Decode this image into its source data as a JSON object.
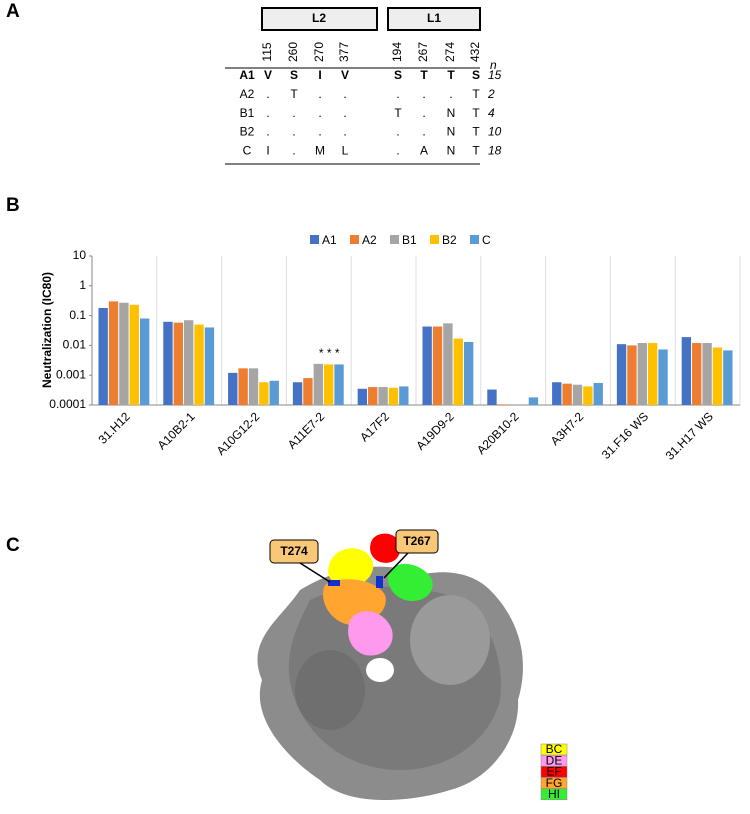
{
  "panel_a": {
    "label": "A",
    "groups": [
      "L2",
      "L1"
    ],
    "positions": [
      115,
      260,
      270,
      377,
      194,
      267,
      274,
      432
    ],
    "n_header": "n",
    "rows": [
      {
        "name": "A1",
        "residues": [
          "V",
          "S",
          "I",
          "V",
          "S",
          "T",
          "T",
          "S"
        ],
        "n": 15
      },
      {
        "name": "A2",
        "residues": [
          ".",
          "T",
          ".",
          ".",
          ".",
          ".",
          ".",
          "T"
        ],
        "n": 2
      },
      {
        "name": "B1",
        "residues": [
          ".",
          ".",
          ".",
          ".",
          "T",
          ".",
          "N",
          "T"
        ],
        "n": 4
      },
      {
        "name": "B2",
        "residues": [
          ".",
          ".",
          ".",
          ".",
          ".",
          ".",
          "N",
          "T"
        ],
        "n": 10
      },
      {
        "name": "C",
        "residues": [
          "I",
          ".",
          "M",
          "L",
          ".",
          "A",
          "N",
          "T"
        ],
        "n": 18
      }
    ]
  },
  "panel_b": {
    "label": "B",
    "chart_data": {
      "type": "bar",
      "y_label": "Neutralization (IC80)",
      "log_scale": true,
      "legend": "top",
      "categories": [
        "31.H12",
        "A10B2-1",
        "A10G12-2",
        "A11E7-2",
        "A17F2",
        "A19D9-2",
        "A20B10-2",
        "A3H7-2",
        "31.F16 WS",
        "31.H17 WS"
      ],
      "series": [
        {
          "name": "A1",
          "color": "#4472c4",
          "values": [
            0.18,
            0.062,
            0.0012,
            0.00058,
            0.00035,
            0.043,
            0.00033,
            0.00058,
            0.011,
            0.019
          ]
        },
        {
          "name": "A2",
          "color": "#ed7d31",
          "values": [
            0.3,
            0.058,
            0.0017,
            0.0008,
            0.0004,
            0.043,
            0.000105,
            0.00052,
            0.01,
            0.012
          ]
        },
        {
          "name": "B1",
          "color": "#a5a5a5",
          "values": [
            0.27,
            0.07,
            0.0017,
            0.0024,
            0.0004,
            0.055,
            0.000105,
            0.00048,
            0.012,
            0.012
          ]
        },
        {
          "name": "B2",
          "color": "#ffc000",
          "values": [
            0.23,
            0.05,
            0.00058,
            0.0023,
            0.00038,
            0.017,
            null,
            0.00042,
            0.012,
            0.0085
          ]
        },
        {
          "name": "C",
          "color": "#5b9bd5",
          "values": [
            0.08,
            0.04,
            0.00065,
            0.0023,
            0.00042,
            0.013,
            0.00018,
            0.00055,
            0.0073,
            0.0068
          ]
        }
      ],
      "ylim": [
        0.0001,
        10
      ],
      "yticks": [
        0.0001,
        0.001,
        0.01,
        0.1,
        1,
        10
      ],
      "annotation": "* * *"
    }
  },
  "panel_c": {
    "label": "C",
    "callouts": [
      "T274",
      "T267"
    ],
    "legend": [
      {
        "name": "BC",
        "color": "#ffff00"
      },
      {
        "name": "DE",
        "color": "#ff99ee"
      },
      {
        "name": "EF",
        "color": "#ff0000"
      },
      {
        "name": "FG",
        "color": "#ffa530"
      },
      {
        "name": "HI",
        "color": "#33ee33"
      }
    ]
  }
}
